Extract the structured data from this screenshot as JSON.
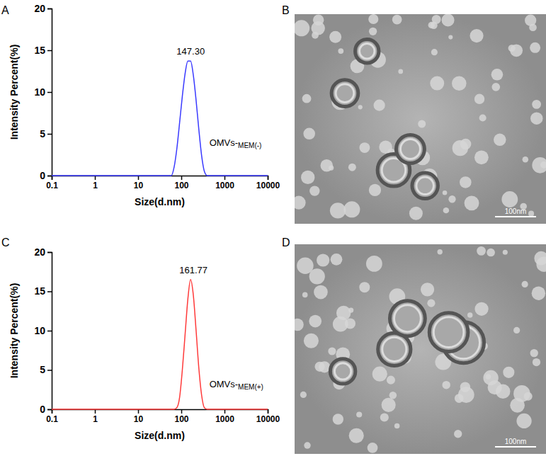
{
  "chart_data": [
    {
      "type": "line",
      "panel": "A",
      "log": "x",
      "x_label": "Size(d.nm)",
      "y_label": "Intensity Percent(%)",
      "x": [
        0.1,
        1,
        10,
        40,
        58.8,
        68.1,
        78.8,
        91.3,
        105.7,
        122.4,
        141.8,
        164.2,
        190.1,
        220.2,
        255,
        295.3,
        342,
        396.1,
        458.7,
        1000,
        10000
      ],
      "series": [
        {
          "name": "OMVs-MEM(-)",
          "color": "#3a3aff",
          "values": [
            0,
            0,
            0,
            0,
            0,
            1.0,
            3.2,
            6.3,
            9.5,
            12.2,
            13.7,
            13.7,
            12.0,
            9.0,
            5.5,
            2.4,
            0.5,
            0,
            0,
            0,
            0
          ]
        }
      ],
      "annotations": [
        "147.30"
      ],
      "xlim": [
        0.1,
        10000
      ],
      "xticks": [
        0.1,
        1,
        10,
        100,
        1000,
        10000
      ],
      "ylim": [
        0,
        20
      ],
      "yticks": [
        0,
        5,
        10,
        15,
        20
      ]
    },
    {
      "type": "line",
      "panel": "C",
      "log": "x",
      "x_label": "Size(d.nm)",
      "y_label": "Intensity Percent(%)",
      "x": [
        0.1,
        1,
        10,
        40,
        58.8,
        68.1,
        78.8,
        91.3,
        105.7,
        122.4,
        141.8,
        164.2,
        190.1,
        220.2,
        255,
        295.3,
        342,
        396.1,
        458.7,
        1000,
        10000
      ],
      "series": [
        {
          "name": "OMVs-MEM(+)",
          "color": "#ff3a3a",
          "values": [
            0,
            0,
            0,
            0,
            0,
            0,
            0.2,
            1.5,
            5.0,
            9.5,
            14.0,
            16.5,
            14.5,
            10.0,
            5.2,
            1.8,
            0.2,
            0,
            0,
            0,
            0
          ]
        }
      ],
      "annotations": [
        "161.77"
      ],
      "xlim": [
        0.1,
        10000
      ],
      "xticks": [
        0.1,
        1,
        10,
        100,
        1000,
        10000
      ],
      "ylim": [
        0,
        20
      ],
      "yticks": [
        0,
        5,
        10,
        15,
        20
      ]
    }
  ],
  "images": [
    {
      "panel": "B",
      "scale_bar": "100nm"
    },
    {
      "panel": "D",
      "scale_bar": "100nm"
    }
  ]
}
